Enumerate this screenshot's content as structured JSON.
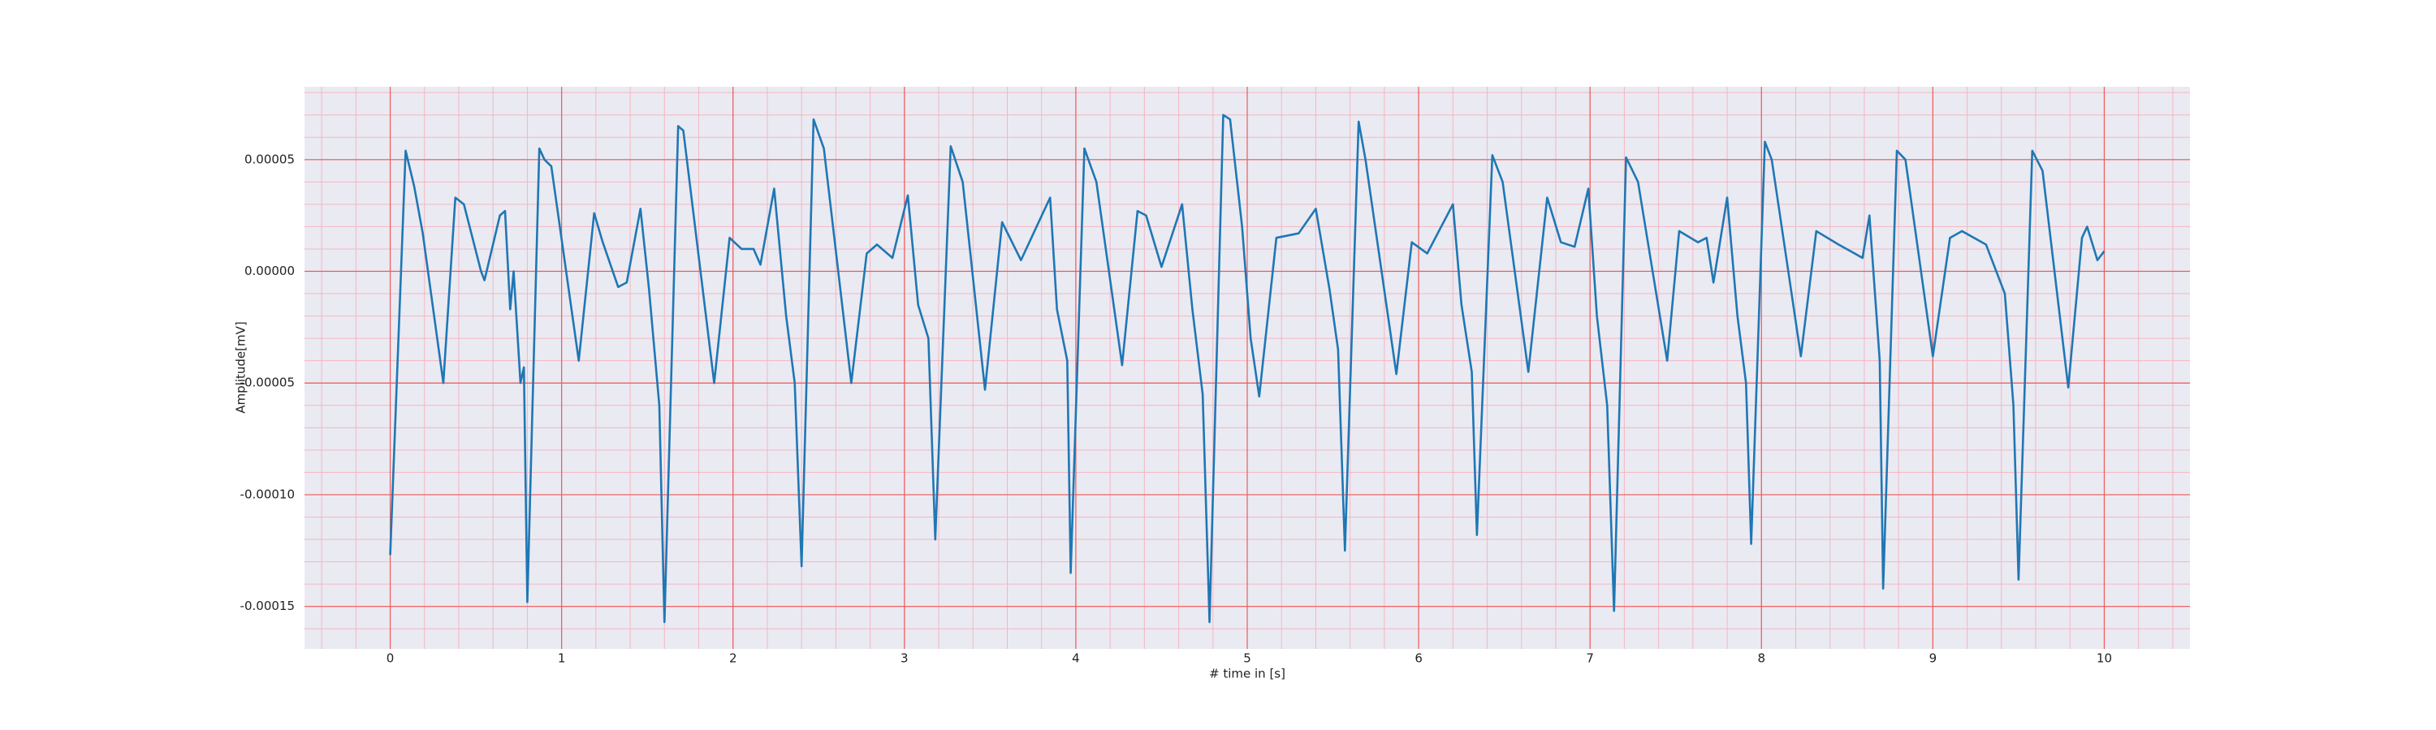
{
  "chart_data": {
    "type": "line",
    "xlabel": "# time in [s]",
    "ylabel": "Amplitude[mV]",
    "x": [
      0.0,
      0.09,
      0.14,
      0.19,
      0.31,
      0.38,
      0.43,
      0.53,
      0.55,
      0.64,
      0.67,
      0.7,
      0.72,
      0.76,
      0.78,
      0.8,
      0.87,
      0.9,
      0.94,
      1.1,
      1.19,
      1.24,
      1.33,
      1.38,
      1.46,
      1.51,
      1.57,
      1.6,
      1.68,
      1.71,
      1.89,
      1.98,
      2.05,
      2.12,
      2.16,
      2.24,
      2.31,
      2.36,
      2.4,
      2.47,
      2.53,
      2.69,
      2.78,
      2.84,
      2.93,
      3.02,
      3.08,
      3.14,
      3.18,
      3.27,
      3.34,
      3.47,
      3.57,
      3.68,
      3.85,
      3.89,
      3.95,
      3.97,
      4.05,
      4.12,
      4.27,
      4.36,
      4.41,
      4.5,
      4.62,
      4.68,
      4.74,
      4.78,
      4.86,
      4.9,
      4.97,
      5.02,
      5.07,
      5.17,
      5.3,
      5.4,
      5.48,
      5.53,
      5.57,
      5.65,
      5.69,
      5.87,
      5.96,
      6.05,
      6.2,
      6.25,
      6.31,
      6.34,
      6.43,
      6.49,
      6.64,
      6.75,
      6.83,
      6.91,
      6.99,
      7.04,
      7.1,
      7.14,
      7.21,
      7.28,
      7.45,
      7.52,
      7.63,
      7.68,
      7.72,
      7.8,
      7.86,
      7.91,
      7.94,
      8.02,
      8.06,
      8.23,
      8.32,
      8.45,
      8.59,
      8.63,
      8.69,
      8.71,
      8.79,
      8.84,
      9.0,
      9.1,
      9.17,
      9.31,
      9.42,
      9.47,
      9.5,
      9.58,
      9.64,
      9.79,
      9.87,
      9.9,
      9.96,
      10.0
    ],
    "series": [
      {
        "color": "#1f77b4",
        "values": [
          -0.000127,
          5.4e-05,
          3.8e-05,
          1.7e-05,
          -5e-05,
          3.3e-05,
          3e-05,
          0,
          -4e-06,
          2.5e-05,
          2.7e-05,
          -1.7e-05,
          0,
          -5e-05,
          -4.3e-05,
          -0.000148,
          5.5e-05,
          5e-05,
          4.7e-05,
          -4e-05,
          2.6e-05,
          1.3e-05,
          -7e-06,
          -5e-06,
          2.8e-05,
          -8e-06,
          -6e-05,
          -0.000157,
          6.5e-05,
          6.3e-05,
          -5e-05,
          1.5e-05,
          1e-05,
          1e-05,
          3e-06,
          3.7e-05,
          -2e-05,
          -5e-05,
          -0.000132,
          6.8e-05,
          5.5e-05,
          -5e-05,
          8e-06,
          1.2e-05,
          6e-06,
          3.4e-05,
          -1.5e-05,
          -3e-05,
          -0.00012,
          5.6e-05,
          4e-05,
          -5.3e-05,
          2.2e-05,
          5e-06,
          3.3e-05,
          -1.7e-05,
          -4e-05,
          -0.000135,
          5.5e-05,
          4e-05,
          -4.2e-05,
          2.7e-05,
          2.5e-05,
          2e-06,
          3e-05,
          -1.7e-05,
          -5.5e-05,
          -0.000157,
          7e-05,
          6.8e-05,
          2e-05,
          -3e-05,
          -5.6e-05,
          1.5e-05,
          1.7e-05,
          2.8e-05,
          -8e-06,
          -3.5e-05,
          -0.000125,
          6.7e-05,
          5e-05,
          -4.6e-05,
          1.3e-05,
          8e-06,
          3e-05,
          -1.5e-05,
          -4.5e-05,
          -0.000118,
          5.2e-05,
          4e-05,
          -4.5e-05,
          3.3e-05,
          1.3e-05,
          1.1e-05,
          3.7e-05,
          -2e-05,
          -6e-05,
          -0.000152,
          5.1e-05,
          4e-05,
          -4e-05,
          1.8e-05,
          1.3e-05,
          1.5e-05,
          -5e-06,
          3.3e-05,
          -2e-05,
          -5e-05,
          -0.000122,
          5.8e-05,
          5e-05,
          -3.8e-05,
          1.8e-05,
          1.2e-05,
          6e-06,
          2.5e-05,
          -4e-05,
          -0.000142,
          5.4e-05,
          5e-05,
          -3.8e-05,
          1.5e-05,
          1.8e-05,
          1.2e-05,
          -1e-05,
          -6e-05,
          -0.000138,
          5.4e-05,
          4.5e-05,
          -5.2e-05,
          1.5e-05,
          2e-05,
          5e-06,
          9e-06
        ]
      }
    ],
    "xlim": [
      -0.5,
      10.5
    ],
    "ylim": [
      -0.000169,
      8.26e-05
    ],
    "xticks": [
      0,
      1,
      2,
      3,
      4,
      5,
      6,
      7,
      8,
      9,
      10
    ],
    "yticks": [
      {
        "value": -0.00015,
        "label": "-0.00015"
      },
      {
        "value": -0.0001,
        "label": "-0.00010"
      },
      {
        "value": -5e-05,
        "label": "-0.00005"
      },
      {
        "value": 0,
        "label": "0.00000"
      },
      {
        "value": 5e-05,
        "label": "0.00005"
      }
    ],
    "grid": true,
    "minor_grid": true
  }
}
